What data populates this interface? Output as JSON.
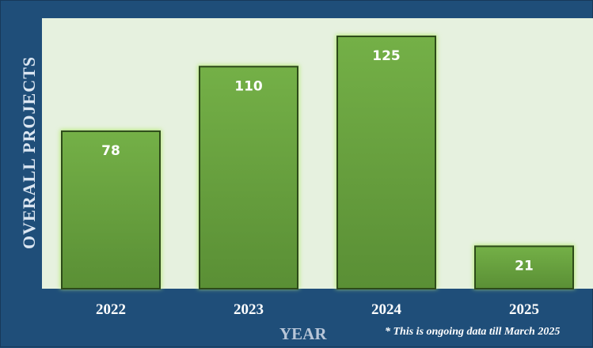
{
  "chart_data": {
    "type": "bar",
    "categories": [
      "2022",
      "2023",
      "2024",
      "2025"
    ],
    "values": [
      78,
      110,
      125,
      21
    ],
    "data_labels": [
      "78",
      "110",
      "125",
      "21"
    ],
    "title": "",
    "xlabel": "YEAR",
    "ylabel": "OVERALL PROJECTS",
    "ylim": [
      0,
      134
    ],
    "grid": false,
    "legend": "none"
  },
  "footnote": "* This is ongoing data till March 2025",
  "colors": {
    "frame": "#1f4e79",
    "plot_background": "#e6f1df",
    "bar_top": "#74b047",
    "bar_bottom": "#5a8f35",
    "bar_border": "#2d4a1a",
    "bar_glow": "#b9ea7a"
  }
}
